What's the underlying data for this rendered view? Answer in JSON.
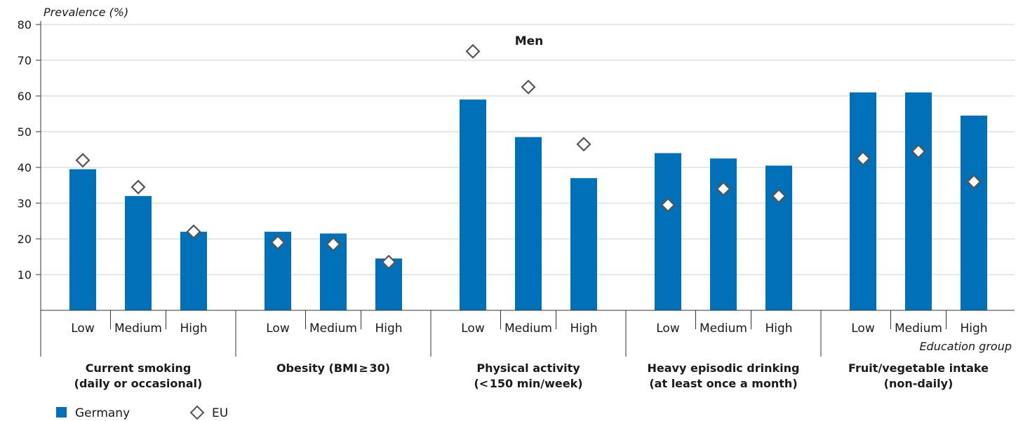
{
  "chart_data": {
    "type": "bar",
    "title": "Men",
    "ylabel": "Prevalence (%)",
    "xlabel": "Education group",
    "ylim": [
      0,
      80
    ],
    "yticks": [
      10,
      20,
      30,
      40,
      50,
      60,
      70,
      80
    ],
    "grid": true,
    "groups": [
      {
        "label": "Current smoking\n(daily or occasional)",
        "categories": [
          "Low",
          "Medium",
          "High"
        ]
      },
      {
        "label": "Obesity (BMI ≥ 30)",
        "categories": [
          "Low",
          "Medium",
          "High"
        ]
      },
      {
        "label": "Physical activity\n(< 150 min/week)",
        "categories": [
          "Low",
          "Medium",
          "High"
        ]
      },
      {
        "label": "Heavy episodic drinking\n(at least once a month)",
        "categories": [
          "Low",
          "Medium",
          "High"
        ]
      },
      {
        "label": "Fruit/vegetable intake\n(non-daily)",
        "categories": [
          "Low",
          "Medium",
          "High"
        ]
      }
    ],
    "series": [
      {
        "name": "Germany",
        "mark": "bar",
        "color": "#0070b8",
        "values": [
          39.5,
          32.0,
          22.0,
          22.0,
          21.5,
          14.5,
          59.0,
          48.5,
          37.0,
          44.0,
          42.5,
          40.5,
          61.0,
          61.0,
          54.5
        ]
      },
      {
        "name": "EU",
        "mark": "diamond",
        "color": "#555555",
        "values": [
          42.0,
          34.5,
          22.0,
          19.0,
          18.5,
          13.5,
          72.5,
          62.5,
          46.5,
          29.5,
          34.0,
          32.0,
          42.5,
          44.5,
          36.0
        ]
      }
    ],
    "legend": "bottom-left"
  }
}
